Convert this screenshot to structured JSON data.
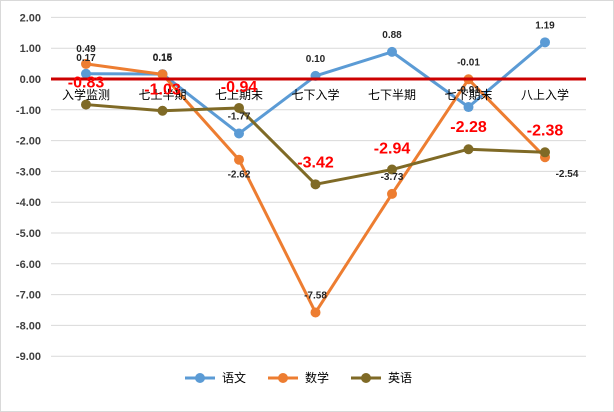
{
  "chart_data": {
    "type": "line",
    "categories": [
      "入学监测",
      "七上半期",
      "七上期末",
      "七下入学",
      "七下半期",
      "七下期末",
      "八上入学"
    ],
    "ylim": [
      -9,
      2
    ],
    "yticks": [
      "2.00",
      "1.00",
      "0.00",
      "-1.00",
      "-2.00",
      "-3.00",
      "-4.00",
      "-5.00",
      "-6.00",
      "-7.00",
      "-8.00",
      "-9.00"
    ],
    "grid": true,
    "legend_position": "bottom",
    "series": [
      {
        "name": "语文",
        "color": "#5b9bd5",
        "values": [
          0.17,
          0.16,
          -1.77,
          0.1,
          0.88,
          -0.91,
          1.19
        ],
        "labels": [
          "0.17",
          "0.16",
          "-1.77",
          "0.10",
          "0.88",
          "-0.91",
          "1.19"
        ]
      },
      {
        "name": "数学",
        "color": "#ed7d31",
        "values": [
          0.49,
          0.15,
          -2.62,
          -7.58,
          -3.73,
          -0.01,
          -2.54
        ],
        "labels": [
          "0.49",
          "0.15",
          "-2.62",
          "-7.58",
          "-3.73",
          "-0.01",
          "-2.54"
        ]
      },
      {
        "name": "英语",
        "color": "#7f6a26",
        "values": [
          -0.83,
          -1.03,
          -0.94,
          -3.42,
          -2.94,
          -2.28,
          -2.38
        ],
        "labels": [
          "-0.83",
          "-1.03",
          "-0.94",
          "-3.42",
          "-2.94",
          "-2.28",
          "-2.38"
        ]
      }
    ],
    "zero_line_color": "#cc0000"
  }
}
